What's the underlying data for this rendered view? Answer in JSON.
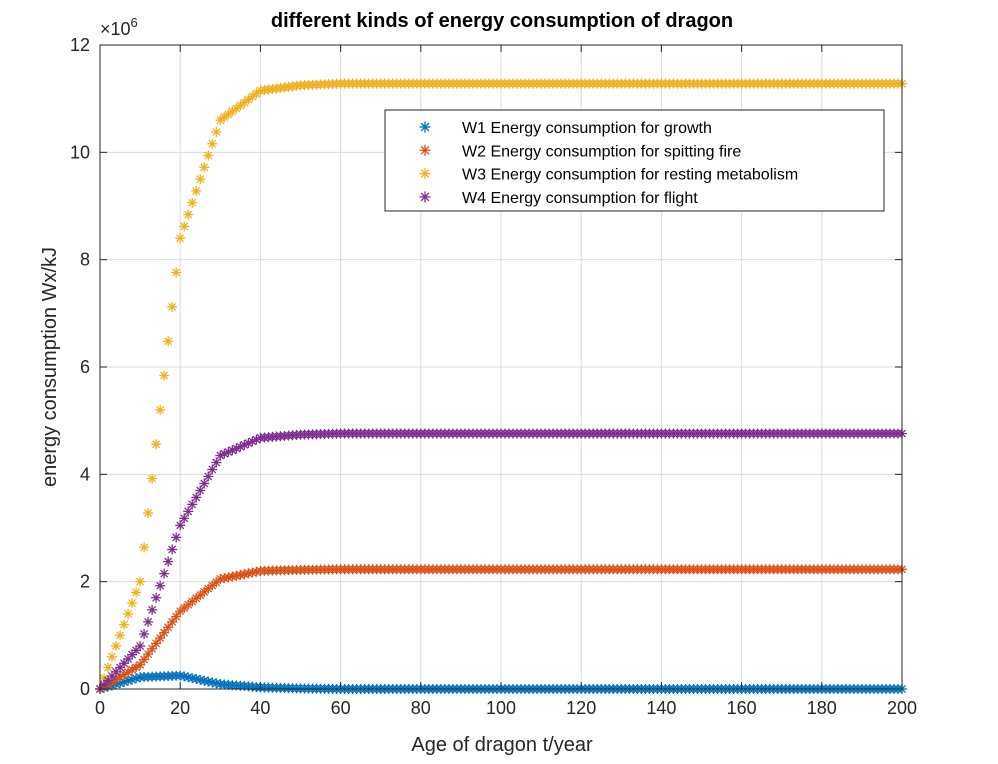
{
  "chart_data": {
    "type": "scatter",
    "title": "different kinds of energy consumption of dragon",
    "xlabel": "Age of dragon  t/year",
    "ylabel": "energy consumption Wx/kJ",
    "y_multiplier": "×10",
    "y_multiplier_exponent": "6",
    "xlim": [
      0,
      200
    ],
    "ylim": [
      0,
      12
    ],
    "x_ticks": [
      0,
      20,
      40,
      60,
      80,
      100,
      120,
      140,
      160,
      180,
      200
    ],
    "y_ticks": [
      0,
      2,
      4,
      6,
      8,
      10,
      12
    ],
    "grid": true,
    "legend_position": "top-right",
    "marker": "asterisk",
    "x": [
      0,
      10,
      20,
      30,
      40,
      50,
      60,
      80,
      100,
      120,
      140,
      160,
      180,
      200
    ],
    "series": [
      {
        "name": "W1 Energy consumption for growth",
        "color": "#0072BD",
        "values": [
          0,
          0.22,
          0.25,
          0.09,
          0.03,
          0.01,
          0,
          0,
          0,
          0,
          0,
          0,
          0,
          0
        ]
      },
      {
        "name": "W2 Energy consumption for spitting fire",
        "color": "#D95319",
        "values": [
          0,
          0.45,
          1.45,
          2.05,
          2.2,
          2.22,
          2.23,
          2.23,
          2.23,
          2.23,
          2.23,
          2.23,
          2.23,
          2.23
        ]
      },
      {
        "name": "W3 Energy consumption for resting metabolism",
        "color": "#EDB120",
        "values": [
          0,
          2.0,
          8.4,
          10.6,
          11.15,
          11.25,
          11.28,
          11.28,
          11.28,
          11.28,
          11.28,
          11.28,
          11.28,
          11.28
        ]
      },
      {
        "name": "W4 Energy consumption for flight",
        "color": "#7E2F8E",
        "values": [
          0,
          0.8,
          3.05,
          4.35,
          4.68,
          4.74,
          4.76,
          4.76,
          4.76,
          4.76,
          4.76,
          4.76,
          4.76,
          4.76
        ]
      }
    ]
  }
}
